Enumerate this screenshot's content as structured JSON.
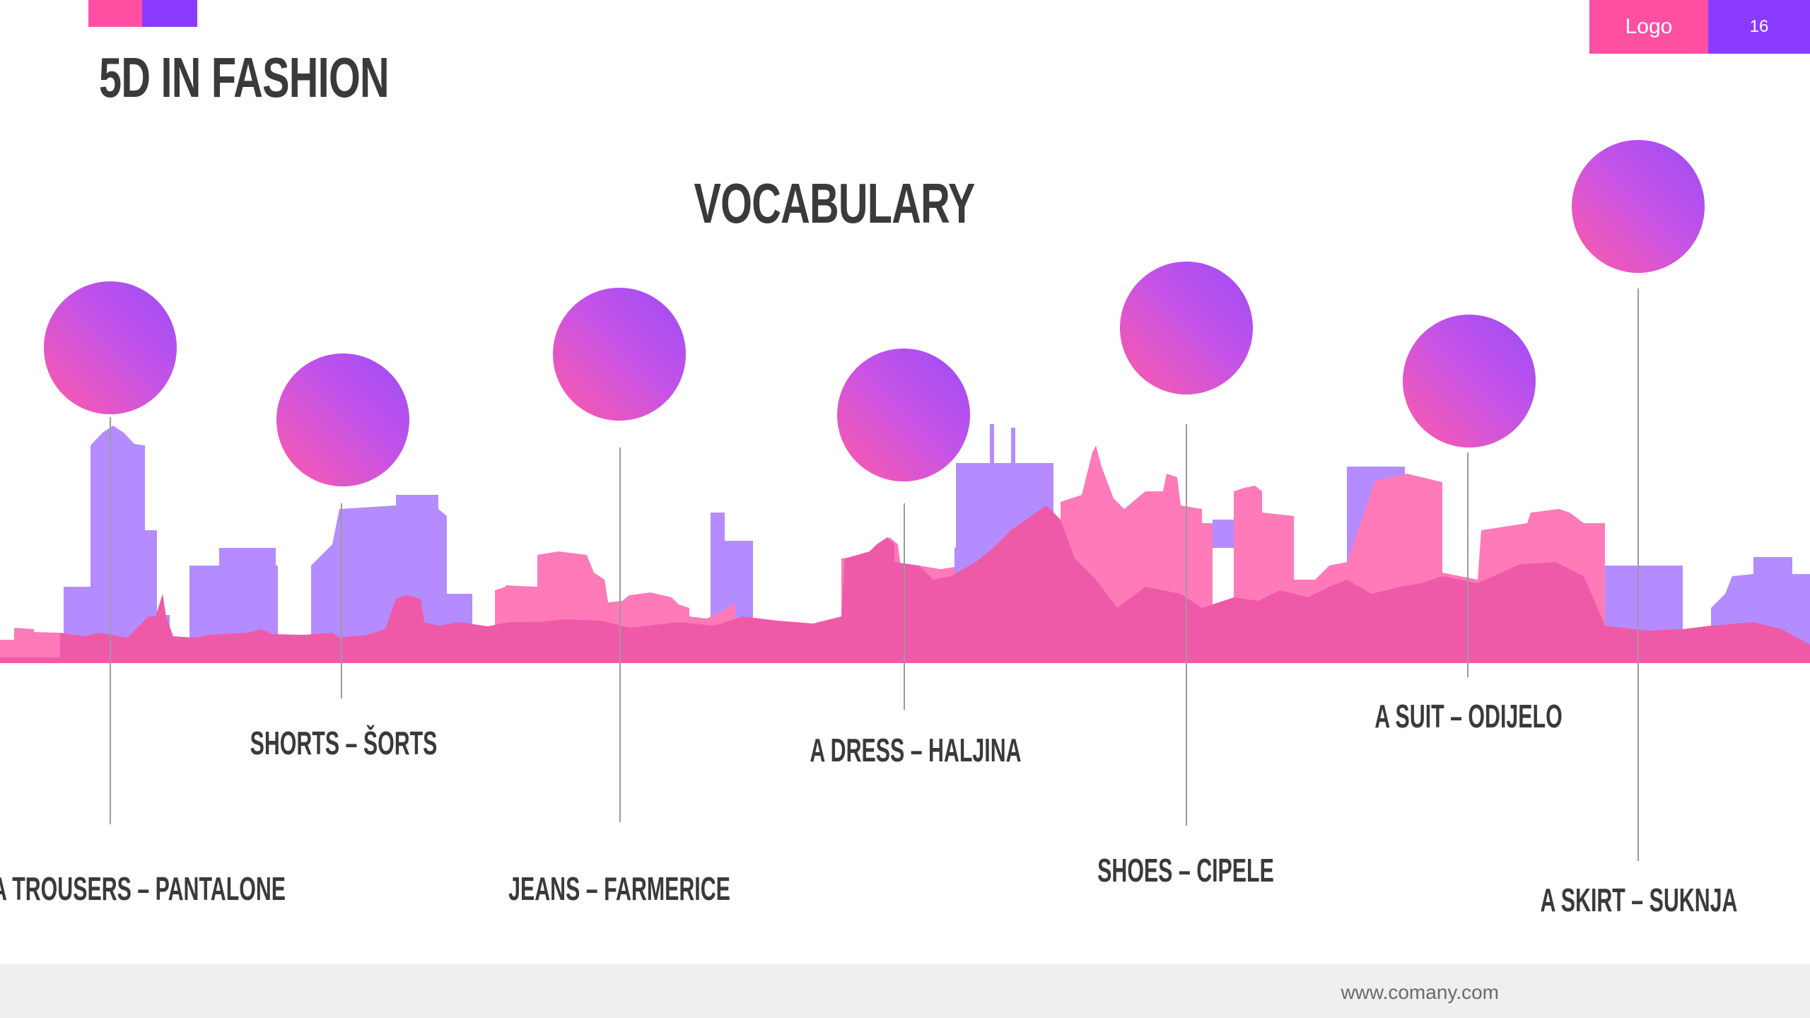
{
  "slide": {
    "title": "5D IN FASHION",
    "heading": "VOCABULARY"
  },
  "vocabulary": [
    {
      "term": "A TROUSERS – PANTALONE"
    },
    {
      "term": "SHORTS – ŠORTS"
    },
    {
      "term": "JEANS – FARMERICE"
    },
    {
      "term": "A DRESS – HALJINA"
    },
    {
      "term": "SHOES – CIPELE"
    },
    {
      "term": "A SUIT – ODIJELO"
    },
    {
      "term": "A SKIRT – SUKNJA"
    }
  ],
  "footer": {
    "url": "www.comany.com",
    "logo": "Logo",
    "page_number": "16"
  },
  "colors": {
    "accent_pink": "#ff4fa3",
    "accent_purple": "#8a3bff",
    "skyline_purple": "#b48cff",
    "skyline_pink": "#ff7ab8",
    "skyline_deep_pink": "#ee5aa8"
  }
}
